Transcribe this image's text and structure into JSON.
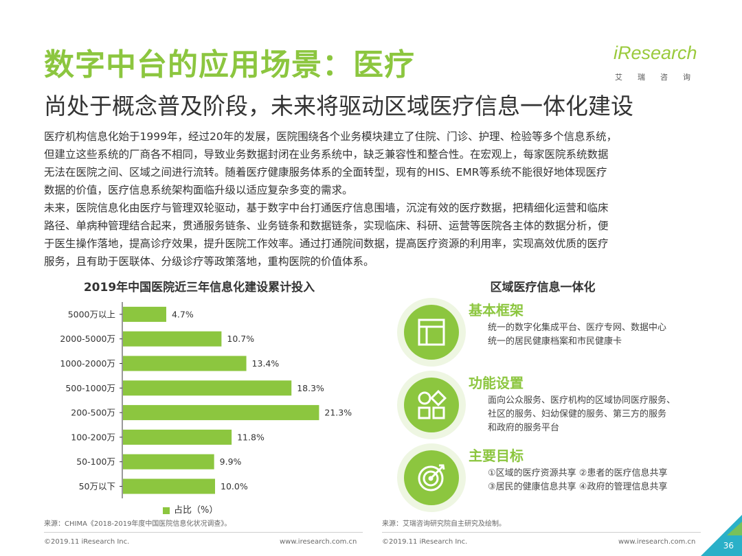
{
  "header": {
    "title": "数字中台的应用场景：医疗",
    "subtitle": "尚处于概念普及阶段，未来将驱动区域医疗信息一体化建设",
    "logo_text": "iResearch",
    "logo_sub": "艾瑞咨询"
  },
  "body": {
    "paragraph1_lines": [
      "医疗机构信息化始于1999年，经过20年的发展，医院围绕各个业务模块建立了住院、门诊、护理、检验等多个信息系统，",
      "但建立这些系统的厂商各不相同，导致业务数据封闭在业务系统中，缺乏兼容性和整合性。在宏观上，每家医院系统数据",
      "无法在医院之间、区域之间进行流转。随着医疗健康服务体系的全面转型，现有的HIS、EMR等系统不能很好地体现医疗",
      "数据的价值，医疗信息系统架构面临升级以适应复杂多变的需求。"
    ],
    "paragraph2_lines": [
      "未来，医院信息化由医疗与管理双轮驱动，基于数字中台打通医疗信息围墙，沉淀有效的医疗数据，把精细化运营和临床",
      "路径、单病种管理结合起来，贯通服务链条、业务链条和数据链条，实现临床、科研、运营等医院各主体的数据分析，便",
      "于医生操作落地，提高诊疗效果，提升医院工作效率。通过打通院间数据，提高医疗资源的利用率，实现高效优质的医疗",
      "服务，且有助于医联体、分级诊疗等政策落地，重构医院的价值体系。"
    ]
  },
  "chart_data": {
    "type": "bar",
    "orientation": "horizontal",
    "title": "2019年中国医院近三年信息化建设累计投入",
    "categories": [
      "5000万以上",
      "2000-5000万",
      "1000-2000万",
      "500-1000万",
      "200-500万",
      "100-200万",
      "50-100万",
      "50万以下"
    ],
    "series": [
      {
        "name": "占比（%）",
        "values": [
          4.7,
          10.7,
          13.4,
          18.3,
          21.3,
          11.8,
          9.9,
          10.0
        ],
        "labels": [
          "4.7%",
          "10.7%",
          "13.4%",
          "18.3%",
          "21.3%",
          "11.8%",
          "9.9%",
          "10.0%"
        ]
      }
    ],
    "xlim": [
      0,
      25
    ],
    "grid": false,
    "legend_position": "bottom",
    "color": "#8cc63f"
  },
  "sources": {
    "left": "来源：CHIMA《2018-2019年度中国医院信息化状况调查》。",
    "right": "来源：艾瑞咨询研究院自主研究及绘制。"
  },
  "footer": {
    "copyright": "©2019.11 iResearch Inc.",
    "website": "www.iresearch.com.cn",
    "page": "36"
  },
  "right_panel": {
    "title": "区域医疗信息一体化",
    "features": [
      {
        "icon": "window-layout-icon",
        "title": "基本框架",
        "lines": [
          "统一的数字化集成平台、医疗专网、数据中心",
          "统一的居民健康档案和市民健康卡"
        ]
      },
      {
        "icon": "shapes-grid-icon",
        "title": "功能设置",
        "lines": [
          "面向公众服务、医疗机构的区域协同医疗服务、",
          "社区的服务、妇幼保健的服务、第三方的服务",
          "和政府的服务平台"
        ]
      },
      {
        "icon": "target-icon",
        "title": "主要目标",
        "lines": [
          "①区域的医疗资源共享  ②患者的医疗信息共享",
          "③居民的健康信息共享  ④政府的管理信息共享"
        ]
      }
    ]
  },
  "colors": {
    "accent": "#8cc63f",
    "accent_light": "#eef6e2",
    "corner": "#2ab0c8"
  }
}
